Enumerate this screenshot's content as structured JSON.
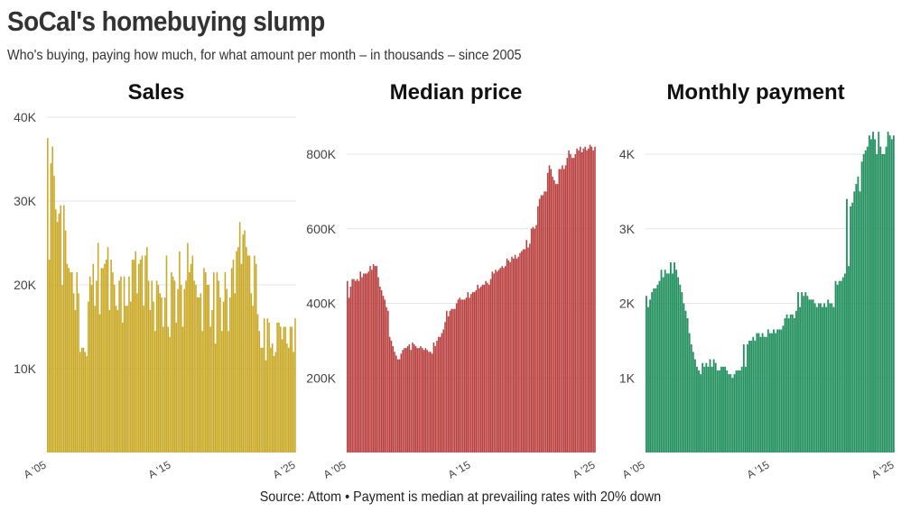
{
  "header": {
    "title": "SoCal's homebuying slump",
    "subtitle": "Who's buying, paying how much, for what amount per month – in thousands – since 2005"
  },
  "footer": {
    "source": "Source: Attom • Payment is median at prevailing rates with 20% down"
  },
  "chart_data": [
    {
      "type": "bar",
      "title": "Sales",
      "color": "#c9a825",
      "x_start": "2005-01",
      "x_frequency": "monthly",
      "x_tick_labels": [
        "A '05",
        "A '15",
        "A '25"
      ],
      "y_ticks": [
        10000,
        20000,
        30000,
        40000
      ],
      "y_tick_labels": [
        "10K",
        "20K",
        "30K",
        "40K"
      ],
      "ylim": [
        0,
        40000
      ],
      "grid": true,
      "values": [
        37500,
        23000,
        34500,
        36500,
        33000,
        29000,
        27500,
        28500,
        29500,
        20000,
        29500,
        26500,
        22500,
        22000,
        21500,
        21500,
        19000,
        17000,
        21500,
        19000,
        12000,
        12500,
        12500,
        12000,
        11500,
        18000,
        21000,
        20000,
        22500,
        17500,
        20500,
        25000,
        16500,
        22000,
        22000,
        22500,
        23000,
        24500,
        17000,
        23000,
        21500,
        20000,
        17500,
        17000,
        20500,
        21000,
        15500,
        21000,
        17500,
        17500,
        21000,
        18000,
        23000,
        23000,
        24000,
        19000,
        22500,
        23000,
        23500,
        17500,
        23500,
        24500,
        20500,
        17000,
        20500,
        18000,
        14500,
        20500,
        20000,
        19000,
        18500,
        15000,
        18500,
        23500,
        15000,
        13800,
        21500,
        21000,
        20500,
        15500,
        19500,
        24000,
        20000,
        15000,
        19500,
        20500,
        25000,
        21500,
        22500,
        23500,
        20500,
        20000,
        18500,
        18500,
        19000,
        14500,
        22000,
        21500,
        20000,
        20000,
        15000,
        17000,
        21500,
        13000,
        21500,
        20500,
        18500,
        14500,
        18000,
        21500,
        19500,
        14500,
        18500,
        22000,
        23000,
        19000,
        24000,
        24500,
        27500,
        22500,
        26000,
        26500,
        24500,
        23500,
        23500,
        19000,
        17500,
        23500,
        22500,
        16500,
        14500,
        12500,
        12500,
        16000,
        11000,
        16000,
        15500,
        12500,
        13000,
        11500,
        12000,
        15500,
        15500,
        15000,
        13500,
        15000,
        15000,
        13000,
        12500,
        15000,
        15000,
        12000,
        16000
      ]
    },
    {
      "type": "bar",
      "title": "Median price",
      "color": "#b93f3f",
      "x_start": "2005-01",
      "x_frequency": "monthly",
      "x_tick_labels": [
        "A '05",
        "A '15",
        "A '25"
      ],
      "y_ticks": [
        200000,
        400000,
        600000,
        800000
      ],
      "y_tick_labels": [
        "200K",
        "400K",
        "600K",
        "800K"
      ],
      "ylim": [
        0,
        850000
      ],
      "grid": true,
      "values": [
        460000,
        415000,
        445000,
        465000,
        465000,
        460000,
        465000,
        460000,
        485000,
        470000,
        480000,
        480000,
        480000,
        485000,
        500000,
        490000,
        505000,
        500000,
        500000,
        470000,
        445000,
        435000,
        420000,
        410000,
        390000,
        380000,
        310000,
        300000,
        285000,
        270000,
        260000,
        250000,
        250000,
        265000,
        275000,
        280000,
        280000,
        285000,
        290000,
        275000,
        295000,
        290000,
        285000,
        280000,
        280000,
        285000,
        280000,
        275000,
        280000,
        275000,
        270000,
        270000,
        265000,
        295000,
        285000,
        300000,
        310000,
        310000,
        320000,
        330000,
        350000,
        380000,
        365000,
        380000,
        385000,
        385000,
        385000,
        400000,
        410000,
        415000,
        410000,
        410000,
        410000,
        415000,
        430000,
        415000,
        425000,
        430000,
        430000,
        435000,
        450000,
        440000,
        445000,
        450000,
        450000,
        460000,
        455000,
        450000,
        465000,
        485000,
        480000,
        490000,
        485000,
        490000,
        495000,
        500000,
        495000,
        500000,
        520000,
        515000,
        510000,
        525000,
        520000,
        530000,
        520000,
        525000,
        535000,
        540000,
        545000,
        545000,
        570000,
        550000,
        560000,
        600000,
        605000,
        600000,
        610000,
        660000,
        680000,
        690000,
        690000,
        700000,
        700000,
        750000,
        770000,
        760000,
        740000,
        730000,
        720000,
        720000,
        760000,
        760000,
        770000,
        760000,
        770000,
        790000,
        810000,
        800000,
        790000,
        790000,
        800000,
        815000,
        810000,
        820000,
        805000,
        815000,
        820000,
        810000,
        815000,
        825000,
        820000,
        810000,
        820000
      ]
    },
    {
      "type": "bar",
      "title": "Monthly payment",
      "color": "#23915f",
      "x_start": "2005-01",
      "x_frequency": "monthly",
      "x_tick_labels": [
        "A '05",
        "A '15",
        "A '25"
      ],
      "y_ticks": [
        1000,
        2000,
        3000,
        4000
      ],
      "y_tick_labels": [
        "1K",
        "2K",
        "3K",
        "4K"
      ],
      "ylim": [
        0,
        4300
      ],
      "grid": true,
      "values": [
        2100,
        1950,
        2050,
        2150,
        2200,
        2200,
        2250,
        2300,
        2450,
        2350,
        2450,
        2400,
        2400,
        2550,
        2400,
        2550,
        2450,
        2350,
        2250,
        2150,
        2000,
        1900,
        1800,
        1600,
        1450,
        1350,
        1250,
        1150,
        1100,
        1050,
        1200,
        1150,
        1200,
        1150,
        1250,
        1150,
        1250,
        1200,
        1100,
        1100,
        1150,
        1150,
        1150,
        1100,
        1050,
        1050,
        1000,
        1050,
        1100,
        1100,
        1100,
        1150,
        1450,
        1150,
        1450,
        1500,
        1500,
        1550,
        1500,
        1600,
        1600,
        1550,
        1600,
        1550,
        1550,
        1650,
        1600,
        1600,
        1650,
        1600,
        1650,
        1650,
        1650,
        1700,
        1800,
        1850,
        1800,
        1850,
        1850,
        1800,
        1900,
        2150,
        1950,
        2150,
        2100,
        2150,
        2100,
        2050,
        2050,
        2050,
        2000,
        1950,
        2000,
        2000,
        1950,
        2000,
        1950,
        2050,
        2000,
        2000,
        1950,
        2300,
        2250,
        2300,
        2300,
        2350,
        2400,
        3400,
        2500,
        3300,
        3350,
        3500,
        3600,
        3700,
        3500,
        3900,
        4000,
        4050,
        4100,
        4250,
        4200,
        4300,
        4200,
        4000,
        4300,
        4100,
        4000,
        4000,
        4100,
        4300,
        4250,
        4200,
        4250
      ]
    }
  ]
}
